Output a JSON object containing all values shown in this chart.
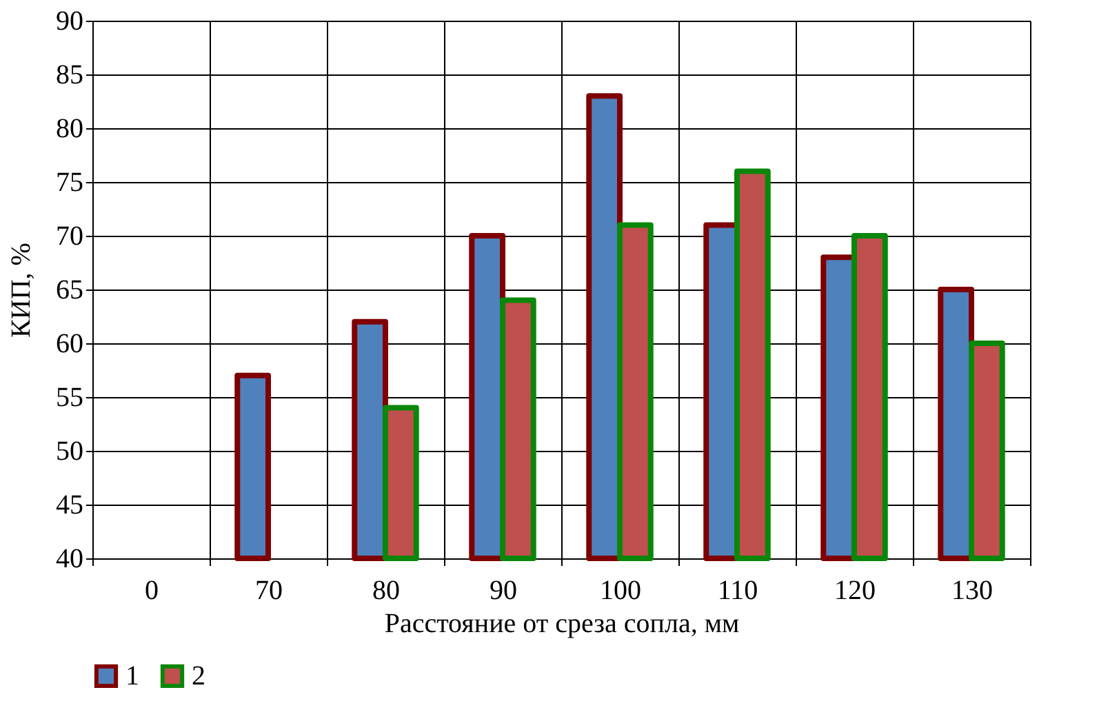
{
  "chart_data": {
    "type": "bar",
    "xlabel": "Расстояние от среза сопла, мм",
    "ylabel": "КИП, %",
    "categories": [
      "0",
      "70",
      "80",
      "90",
      "100",
      "110",
      "120",
      "130"
    ],
    "series": [
      {
        "name": "1",
        "color": "#4f81bd",
        "values": [
          null,
          57,
          62,
          70,
          83,
          71,
          68,
          65
        ]
      },
      {
        "name": "2",
        "color": "#c0504d",
        "values": [
          null,
          null,
          54,
          64,
          71,
          76,
          70,
          60
        ]
      }
    ],
    "ylim": [
      40,
      90
    ],
    "yticks": [
      40,
      45,
      50,
      55,
      60,
      65,
      70,
      75,
      80,
      85,
      90
    ],
    "grid": true,
    "legend": "bottom"
  }
}
